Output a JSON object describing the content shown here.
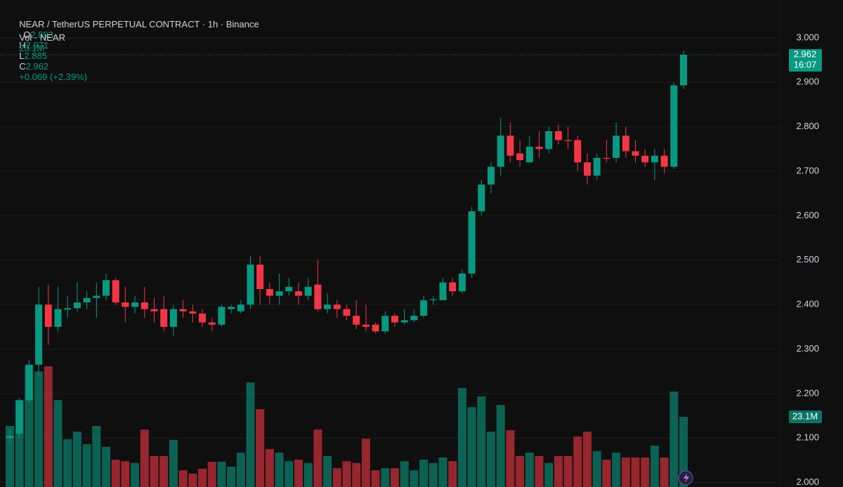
{
  "chart_data": {
    "type": "candlestick",
    "title": "NEAR / TetherUS PERPETUAL CONTRACT · 1h · Binance",
    "o_label": "O",
    "h_label": "H",
    "l_label": "L",
    "c_label": "C",
    "change": "+0.069 (+2.39%)",
    "countdown": "16:07",
    "up_color": "#089981",
    "down_color": "#f23645",
    "open": [
      2.1,
      2.11,
      2.185,
      2.265,
      2.4,
      2.35,
      2.389,
      2.392,
      2.405,
      2.415,
      2.42,
      2.455,
      2.405,
      2.395,
      2.405,
      2.39,
      2.39,
      2.35,
      2.39,
      2.385,
      2.38,
      2.36,
      2.355,
      2.39,
      2.385,
      2.4,
      2.49,
      2.435,
      2.42,
      2.43,
      2.43,
      2.42,
      2.445,
      2.39,
      2.4,
      2.39,
      2.375,
      2.355,
      2.355,
      2.34,
      2.375,
      2.36,
      2.365,
      2.375,
      2.41,
      2.41,
      2.45,
      2.43,
      2.47,
      2.61,
      2.67,
      2.71,
      2.78,
      2.74,
      2.72,
      2.755,
      2.75,
      2.79,
      2.77,
      2.77,
      2.72,
      2.69,
      2.73,
      2.73,
      2.78,
      2.745,
      2.735,
      2.72,
      2.735,
      2.71,
      2.893
    ],
    "high": [
      2.12,
      2.19,
      2.275,
      2.44,
      2.445,
      2.44,
      2.42,
      2.45,
      2.43,
      2.45,
      2.47,
      2.46,
      2.44,
      2.42,
      2.44,
      2.415,
      2.42,
      2.4,
      2.41,
      2.4,
      2.39,
      2.37,
      2.4,
      2.4,
      2.41,
      2.51,
      2.51,
      2.45,
      2.47,
      2.46,
      2.45,
      2.46,
      2.5,
      2.425,
      2.41,
      2.4,
      2.41,
      2.4,
      2.36,
      2.385,
      2.38,
      2.39,
      2.39,
      2.42,
      2.42,
      2.46,
      2.46,
      2.48,
      2.62,
      2.68,
      2.72,
      2.82,
      2.81,
      2.77,
      2.78,
      2.79,
      2.8,
      2.805,
      2.8,
      2.78,
      2.74,
      2.74,
      2.77,
      2.81,
      2.8,
      2.77,
      2.75,
      2.75,
      2.75,
      2.9,
      2.971
    ],
    "low": [
      2.09,
      2.1,
      2.18,
      2.24,
      2.31,
      2.34,
      2.37,
      2.385,
      2.39,
      2.37,
      2.41,
      2.4,
      2.36,
      2.38,
      2.37,
      2.36,
      2.34,
      2.33,
      2.37,
      2.36,
      2.35,
      2.34,
      2.35,
      2.38,
      2.38,
      2.39,
      2.4,
      2.4,
      2.4,
      2.42,
      2.4,
      2.41,
      2.385,
      2.38,
      2.37,
      2.365,
      2.345,
      2.34,
      2.335,
      2.335,
      2.35,
      2.355,
      2.36,
      2.37,
      2.4,
      2.41,
      2.42,
      2.425,
      2.46,
      2.6,
      2.65,
      2.69,
      2.72,
      2.71,
      2.72,
      2.73,
      2.74,
      2.76,
      2.75,
      2.7,
      2.67,
      2.68,
      2.72,
      2.72,
      2.73,
      2.72,
      2.71,
      2.68,
      2.695,
      2.705,
      2.885
    ],
    "close": [
      2.105,
      2.185,
      2.265,
      2.4,
      2.35,
      2.39,
      2.392,
      2.405,
      2.415,
      2.42,
      2.455,
      2.405,
      2.395,
      2.405,
      2.39,
      2.385,
      2.35,
      2.39,
      2.385,
      2.38,
      2.36,
      2.355,
      2.395,
      2.395,
      2.4,
      2.49,
      2.435,
      2.42,
      2.43,
      2.44,
      2.42,
      2.44,
      2.39,
      2.4,
      2.39,
      2.375,
      2.355,
      2.35,
      2.34,
      2.375,
      2.36,
      2.365,
      2.375,
      2.41,
      2.412,
      2.45,
      2.43,
      2.47,
      2.61,
      2.67,
      2.71,
      2.78,
      2.735,
      2.725,
      2.755,
      2.75,
      2.79,
      2.77,
      2.768,
      2.72,
      2.69,
      2.73,
      2.728,
      2.78,
      2.745,
      2.735,
      2.72,
      2.735,
      2.71,
      2.893,
      2.962
    ],
    "series": [
      {
        "name": "Vol · NEAR",
        "axis": "y2",
        "values": [
          20.1,
          28.6,
          40,
          38,
          39.7,
          28.6,
          15.7,
          18.2,
          14.1,
          20.1,
          13.2,
          9.0,
          8.5,
          7.9,
          18.9,
          10.2,
          10.2,
          15.5,
          5.5,
          4.4,
          6.0,
          8.3,
          8.3,
          6.7,
          11.3,
          34.4,
          25.6,
          12.5,
          11.3,
          8.5,
          9.0,
          7.9,
          18.9,
          10.2,
          6.2,
          8.5,
          7.9,
          15.9,
          5.5,
          6.2,
          6.2,
          8.5,
          5.5,
          9.0,
          7.9,
          9.7,
          8.5,
          32.6,
          26.3,
          29.8,
          18.2,
          27.0,
          18.7,
          10.2,
          11.3,
          10.2,
          7.9,
          10.2,
          10.2,
          16.6,
          18.2,
          11.8,
          9.0,
          11.3,
          9.7,
          9.7,
          9.7,
          13.6,
          9.7,
          31.4,
          23.1
        ],
        "value_labels": [
          null,
          null,
          null,
          null,
          null,
          null,
          null,
          null,
          null,
          null,
          null,
          null,
          null,
          null,
          null,
          null,
          null,
          null,
          null,
          null,
          null,
          null,
          null,
          null,
          null,
          null,
          null,
          null,
          null,
          null,
          null,
          null,
          null,
          null,
          null,
          null,
          null,
          null,
          null,
          null,
          null,
          null,
          null,
          null,
          null,
          null,
          null,
          null,
          null,
          null,
          null,
          null,
          null,
          null,
          null,
          null,
          null,
          null,
          null,
          null,
          null,
          null,
          null,
          null,
          null,
          null,
          null,
          null,
          null,
          null,
          "23.1M"
        ]
      }
    ],
    "ylim": [
      1.99,
      3.085
    ],
    "yticks": [
      {
        "value": 2.0,
        "label": "2.000"
      },
      {
        "value": 2.1,
        "label": "2.100"
      },
      {
        "value": 2.2,
        "label": "2.200"
      },
      {
        "value": 2.3,
        "label": "2.300"
      },
      {
        "value": 2.4,
        "label": "2.400"
      },
      {
        "value": 2.5,
        "label": "2.500"
      },
      {
        "value": 2.6,
        "label": "2.600"
      },
      {
        "value": 2.7,
        "label": "2.700"
      },
      {
        "value": 2.8,
        "label": "2.800"
      },
      {
        "value": 2.9,
        "label": "2.900"
      },
      {
        "value": 3.0,
        "label": "3.000"
      }
    ],
    "y2lim": [
      0,
      44.8
    ],
    "grid": true
  }
}
